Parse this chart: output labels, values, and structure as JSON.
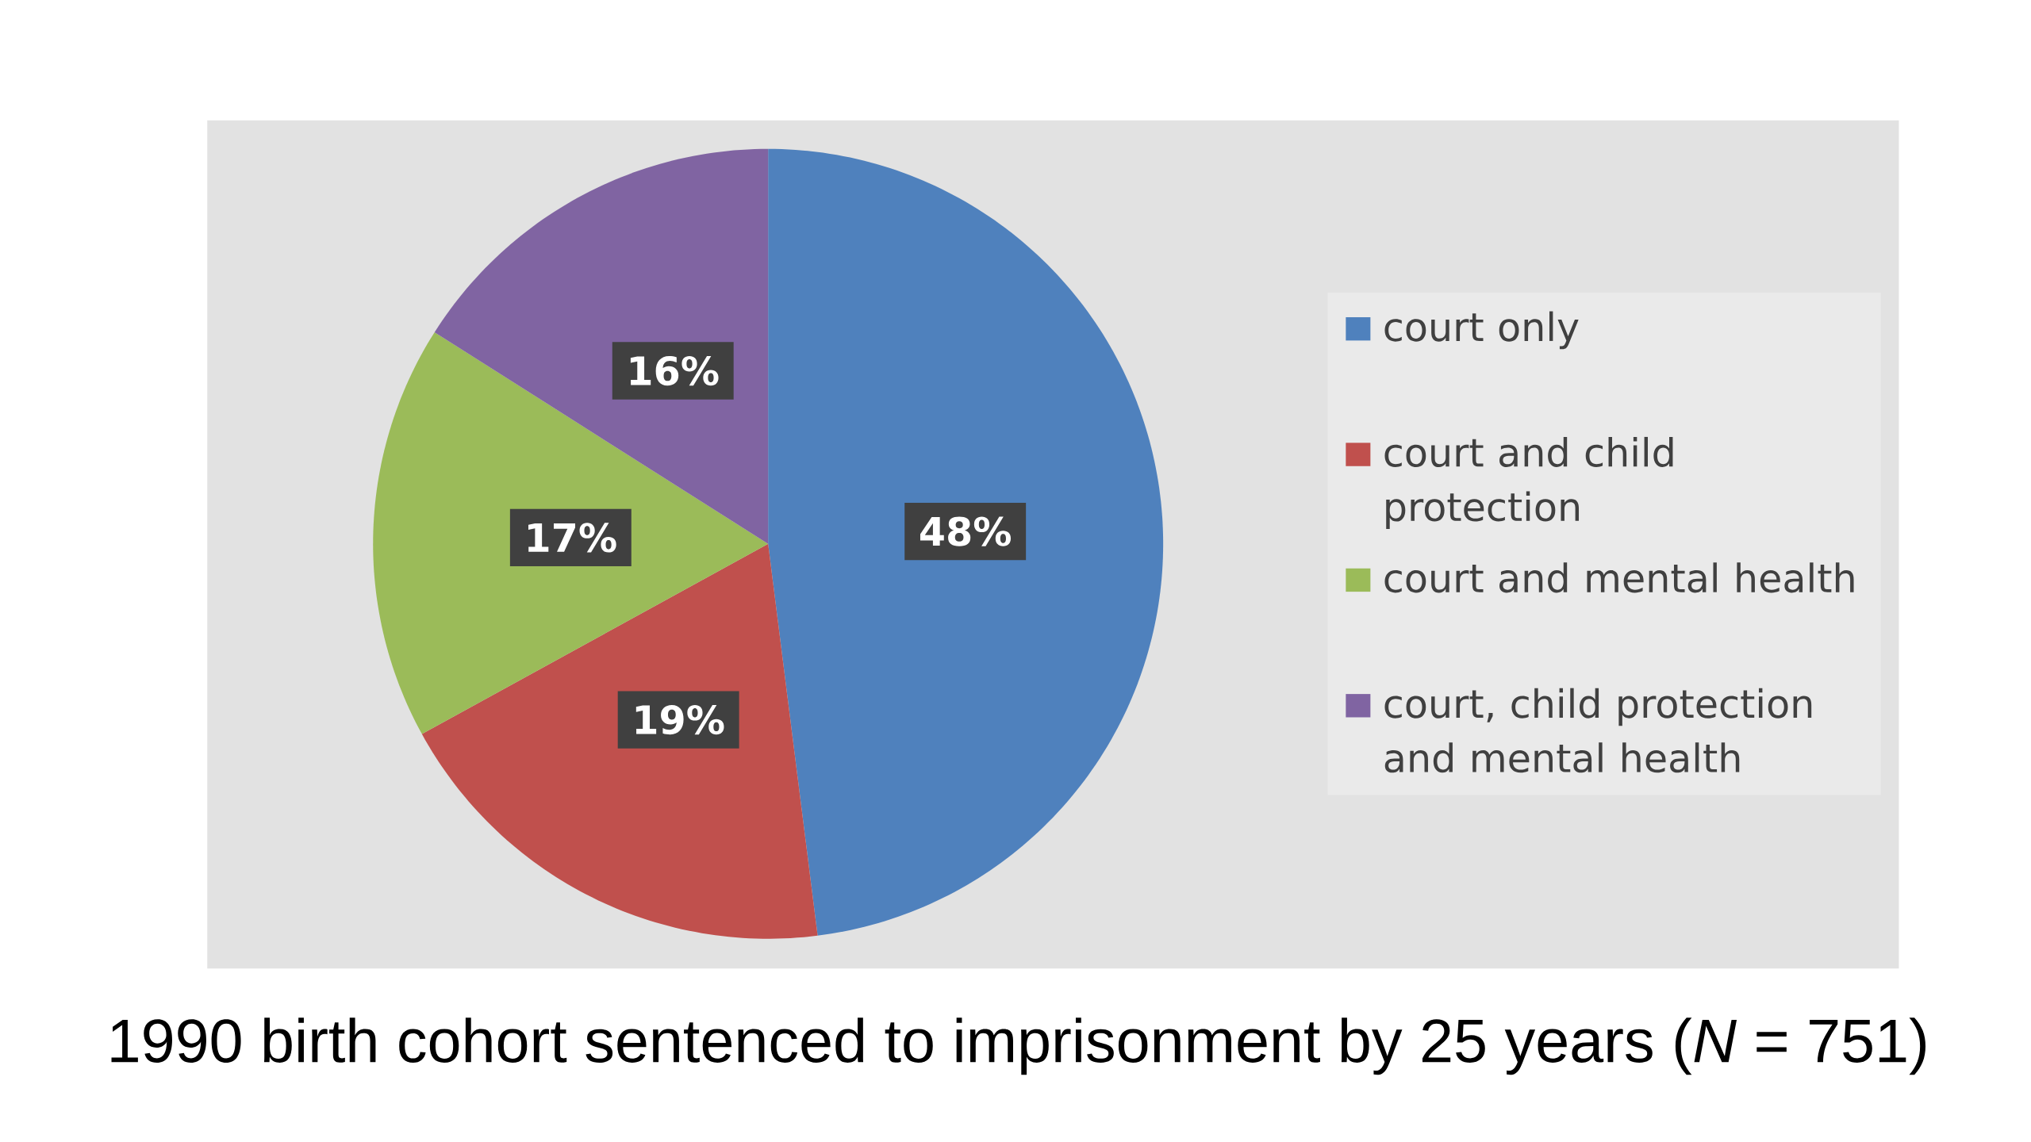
{
  "chart_data": {
    "type": "pie",
    "categories": [
      "court only",
      "court and child protection",
      "court and mental health",
      "court, child protection and mental health"
    ],
    "values": [
      48,
      19,
      17,
      16
    ],
    "colors": [
      "#4f81bd",
      "#c0504d",
      "#9bbb59",
      "#8064a2"
    ],
    "value_labels": [
      "48%",
      "19%",
      "17%",
      "16%"
    ],
    "legend": "right",
    "annotations": [
      "1990 birth cohort sentenced to imprisonment by 25 years (*N* = 751)"
    ]
  }
}
